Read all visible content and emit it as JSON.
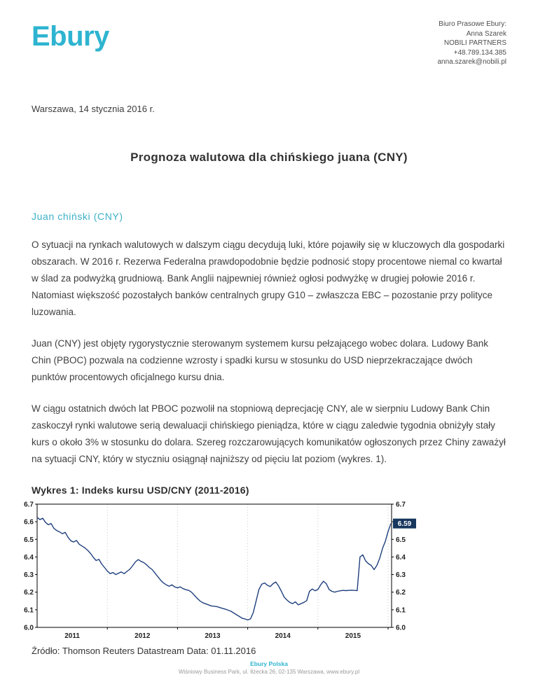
{
  "header": {
    "logo": "Ebury",
    "contact_lines": [
      "Biuro Prasowe Ebury:",
      "Anna Szarek",
      "NOBILI PARTNERS",
      "+48.789.134.385",
      "anna.szarek@nobili.pl"
    ]
  },
  "date_line": "Warszawa, 14 stycznia 2016 r.",
  "title": "Prognoza walutowa dla chińskiego juana (CNY)",
  "section_heading": "Juan chiński (CNY)",
  "paragraphs": [
    "O sytuacji na rynkach walutowych w dalszym ciągu decydują luki, które pojawiły się w kluczowych dla gospodarki obszarach. W 2016 r. Rezerwa Federalna prawdopodobnie będzie podnosić stopy procentowe niemal co kwartał w ślad za podwyżką grudniową. Bank Anglii najpewniej również ogłosi podwyżkę w drugiej połowie 2016 r. Natomiast większość pozostałych banków centralnych grupy G10 – zwłaszcza EBC – pozostanie przy polityce luzowania.",
    "Juan (CNY) jest objęty rygorystycznie sterowanym systemem kursu pełzającego wobec dolara. Ludowy Bank Chin (PBOC) pozwala na codzienne wzrosty i spadki kursu w stosunku do USD nieprzekraczające dwóch punktów procentowych oficjalnego kursu dnia.",
    "W ciągu ostatnich dwóch lat PBOC pozwolił na stopniową deprecjację CNY, ale w sierpniu Ludowy Bank Chin zaskoczył rynki walutowe serią dewaluacji chińskiego pieniądza, które w ciągu zaledwie tygodnia obniżyły stały kurs o około 3% w stosunku do dolara. Szereg rozczarowujących komunikatów ogłoszonych przez Chiny zaważył na sytuacji CNY, który w styczniu osiągnął najniższy od pięciu lat poziom (wykres. 1)."
  ],
  "chart_heading": "Wykres 1: Indeks kursu USD/CNY (2011-2016)",
  "chart_source": "Źródło: Thomson Reuters Datastream Data: 01.11.2016",
  "chart_data": {
    "type": "line",
    "title": "Wykres 1: Indeks kursu USD/CNY (2011-2016)",
    "xlabel": "",
    "ylabel": "",
    "xlim": [
      2011.0,
      2016.05
    ],
    "ylim": [
      6.0,
      6.7
    ],
    "y_ticks": [
      6.0,
      6.1,
      6.2,
      6.3,
      6.4,
      6.5,
      6.6,
      6.7
    ],
    "x_tick_labels": [
      "2011",
      "2012",
      "2013",
      "2014",
      "2015"
    ],
    "x_gridlines": [
      2012,
      2013,
      2014,
      2015,
      2016
    ],
    "grid": "vertical-dotted",
    "legend": "none",
    "line_color": "#1e3f7d",
    "annotation": {
      "label": "6.59",
      "bg": "#17375e",
      "text_color": "#ffffff"
    },
    "series": [
      {
        "name": "USD/CNY",
        "x_start": 2011.0,
        "x_step": 0.04,
        "y": [
          6.625,
          6.612,
          6.62,
          6.596,
          6.583,
          6.59,
          6.562,
          6.55,
          6.542,
          6.532,
          6.54,
          6.512,
          6.492,
          6.485,
          6.494,
          6.472,
          6.462,
          6.452,
          6.438,
          6.42,
          6.398,
          6.38,
          6.386,
          6.36,
          6.34,
          6.32,
          6.305,
          6.312,
          6.3,
          6.308,
          6.315,
          6.305,
          6.318,
          6.33,
          6.35,
          6.372,
          6.385,
          6.375,
          6.368,
          6.355,
          6.34,
          6.328,
          6.308,
          6.288,
          6.268,
          6.252,
          6.242,
          6.234,
          6.242,
          6.23,
          6.225,
          6.23,
          6.22,
          6.214,
          6.21,
          6.2,
          6.182,
          6.165,
          6.15,
          6.14,
          6.134,
          6.128,
          6.122,
          6.12,
          6.118,
          6.113,
          6.108,
          6.104,
          6.098,
          6.092,
          6.082,
          6.072,
          6.062,
          6.052,
          6.048,
          6.042,
          6.048,
          6.085,
          6.15,
          6.215,
          6.245,
          6.252,
          6.24,
          6.232,
          6.248,
          6.258,
          6.235,
          6.205,
          6.172,
          6.155,
          6.142,
          6.135,
          6.145,
          6.128,
          6.135,
          6.142,
          6.152,
          6.205,
          6.218,
          6.208,
          6.215,
          6.242,
          6.262,
          6.248,
          6.215,
          6.205,
          6.2,
          6.205,
          6.208,
          6.21,
          6.209,
          6.21,
          6.211,
          6.21,
          6.209,
          6.4,
          6.412,
          6.378,
          6.362,
          6.352,
          6.328,
          6.352,
          6.392,
          6.448,
          6.488,
          6.545,
          6.59
        ]
      }
    ]
  },
  "footer": {
    "company": "Ebury Polska",
    "address": "Wiśniowy Business Park, ul. Iłżecka 26, 02-135 Warszawa, www.ebury.pl"
  },
  "colors": {
    "brand_teal": "#2eb4d0",
    "heading_teal": "#3cb0c7",
    "body_text": "#3f3f3f",
    "chart_line": "#1e3f7d",
    "annotation_bg": "#17375e"
  }
}
